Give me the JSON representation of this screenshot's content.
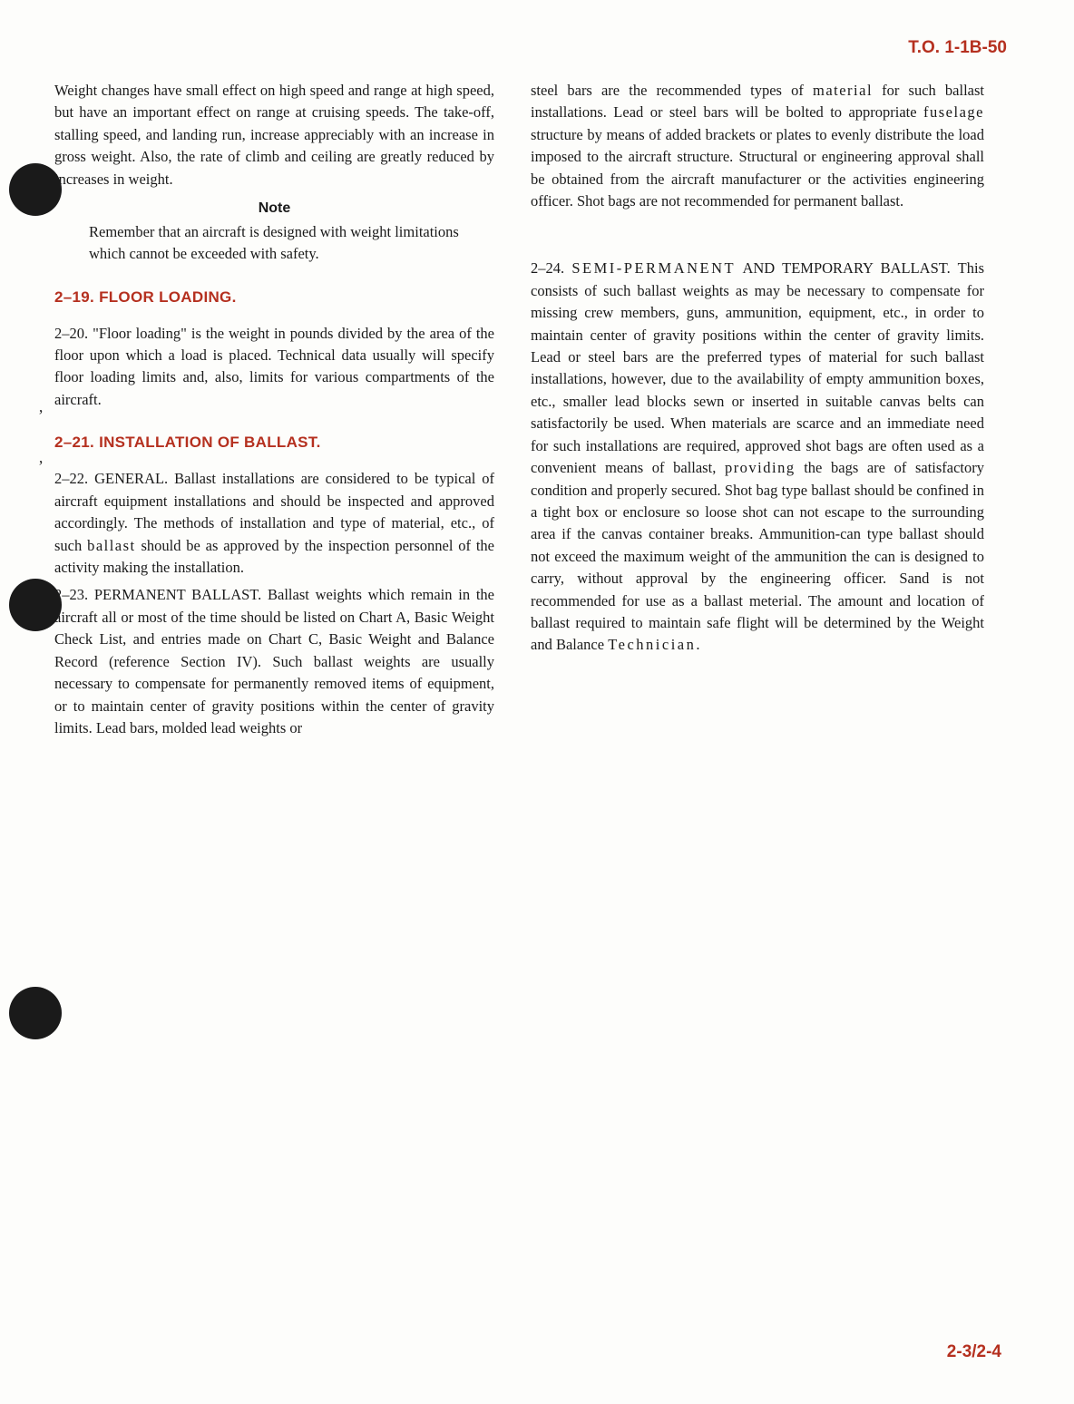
{
  "header": {
    "code": "T.O. 1-1B-50"
  },
  "footer": {
    "pagenum": "2-3/2-4"
  },
  "colors": {
    "accent": "#b5301f",
    "text": "#1a1a1a",
    "bg": "#fdfdfb"
  },
  "left": {
    "p1": "Weight changes have small effect on high speed and range at high speed, but have an important effect on range at cruising speeds. The take-off, stalling speed, and landing run, increase appreciably with an increase in gross weight. Also, the rate of climb and ceiling are greatly reduced by increases in weight.",
    "note_label": "Note",
    "note_body": "Remember that an aircraft is designed with weight limitations which cannot be exceeded with safety.",
    "h219": "2–19. FLOOR LOADING.",
    "p220": "2–20. \"Floor loading\" is the weight in pounds divided by the area of the floor upon which a load is placed. Technical data usually will specify floor loading limits and, also, limits for various compartments of the aircraft.",
    "h221": "2–21. INSTALLATION OF BALLAST.",
    "p222a": "2–22. GENERAL. Ballast installations are considered to be typical of aircraft equipment installations and should be inspected and approved accordingly. The methods of installation and type of material, etc., of such ",
    "p222b": " should be as approved by the inspection personnel of the activity making the installation.",
    "ballast_word": "ballast",
    "p223": "2–23. PERMANENT BALLAST. Ballast weights which remain in the aircraft all or most of the time should be listed on Chart A, Basic Weight Check List, and entries made on Chart C, Basic Weight and Balance Record (reference Section IV). Such ballast weights are usually necessary to compensate for permanently removed items of equipment, or to maintain center of gravity positions within the center of gravity limits. Lead bars, molded lead weights or"
  },
  "right": {
    "p1a": "steel bars are the recommended types of ",
    "material_word": "material",
    "p1b": " for such ballast installations. Lead or steel bars will be bolted to appropriate ",
    "fuselage_word": "fuselage",
    "p1c": " structure by means of added brackets or plates to evenly distribute the load imposed to the aircraft structure. Structural or engineering approval shall be obtained from the aircraft manufacturer or the activities engineering officer. Shot bags are not recommended for permanent ballast.",
    "p224a": "2–24. ",
    "semiperm": "SEMI-PERMANENT",
    "p224b": " AND TEMPORARY BALLAST. This consists of such ballast weights as may be necessary to compensate for missing crew members, guns, ammunition, equipment, etc., in order to maintain center of gravity positions within the center of gravity limits. Lead or steel bars are the preferred types of material for such ballast installations, however, due to the availability of empty ammunition boxes, etc., smaller lead blocks sewn or inserted in suitable canvas belts can satisfactorily be used. When materials are scarce and an immediate need for such installations are required, approved shot bags are often used as a convenient means of ballast, ",
    "providing_word": "providing",
    "p224c": " the bags are of satisfactory condition and properly secured. Shot bag type ballast should be confined in a tight box or enclosure so loose shot can not escape to the surrounding area if the canvas container breaks. Ammunition-can type ballast should not exceed the maximum weight of the ammunition the can is designed to carry, without approval by the engineering officer. Sand is not recommended for use as a ballast meterial. The amount and location of ballast required to maintain safe flight will be determined by the Weight and Balance ",
    "technician_word": "Technician."
  }
}
